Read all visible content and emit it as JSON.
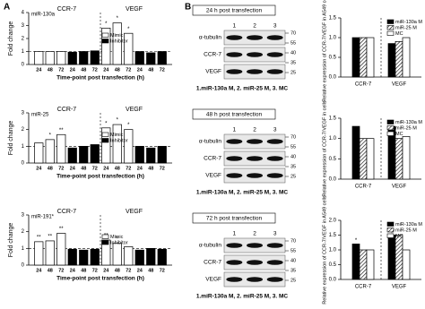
{
  "panel_labels": [
    "A",
    "B"
  ],
  "chart_data": [
    {
      "type": "bar",
      "title": "miR-130a",
      "ylabel": "Fold change",
      "xlabel": "Time-point post transfection (h)",
      "group_labels": [
        "CCR-7",
        "VEGF"
      ],
      "categories": [
        "24",
        "48",
        "72",
        "24",
        "48",
        "72",
        "24",
        "48",
        "72",
        "24",
        "48",
        "72"
      ],
      "series": [
        {
          "name": "Mimic",
          "color": "#ffffff",
          "values": [
            1.0,
            1.0,
            1.0,
            null,
            null,
            null,
            2.8,
            3.2,
            2.4,
            null,
            null,
            null
          ],
          "significance": [
            null,
            null,
            null,
            null,
            null,
            null,
            "*",
            "*",
            "*",
            null,
            null,
            null
          ]
        },
        {
          "name": "Inhibitor",
          "color": "#000000",
          "values": [
            null,
            null,
            null,
            0.95,
            1.0,
            1.05,
            null,
            null,
            null,
            1.0,
            0.9,
            1.0
          ]
        }
      ],
      "ylim": [
        0,
        4
      ],
      "yticks": [
        0,
        1,
        2,
        3,
        4
      ],
      "hline": 1,
      "legend": "center"
    },
    {
      "type": "bar",
      "title": "miR-25",
      "ylabel": "Fold change",
      "xlabel": "Time-point post transfection (h)",
      "group_labels": [
        "CCR-7",
        "VEGF"
      ],
      "categories": [
        "24",
        "48",
        "72",
        "24",
        "48",
        "72",
        "24",
        "48",
        "72",
        "24",
        "48",
        "72"
      ],
      "series": [
        {
          "name": "Mimic",
          "color": "#ffffff",
          "values": [
            1.2,
            1.4,
            1.7,
            null,
            null,
            null,
            2.1,
            2.3,
            2.0,
            null,
            null,
            null
          ],
          "significance": [
            null,
            "*",
            "**",
            null,
            null,
            null,
            "*",
            "*",
            "*",
            null,
            null,
            null
          ]
        },
        {
          "name": "Inhibitor",
          "color": "#000000",
          "values": [
            null,
            null,
            null,
            0.9,
            1.0,
            1.1,
            null,
            null,
            null,
            1.0,
            0.9,
            1.0
          ]
        }
      ],
      "ylim": [
        0,
        3
      ],
      "yticks": [
        0,
        1,
        2,
        3
      ],
      "hline": 1,
      "legend": "center"
    },
    {
      "type": "bar",
      "title": "miR-191*",
      "ylabel": "Fold change",
      "xlabel": "Time-point post transfection (h)",
      "group_labels": [
        "CCR-7",
        "VEGF"
      ],
      "categories": [
        "24",
        "48",
        "72",
        "24",
        "48",
        "72",
        "24",
        "48",
        "72",
        "24",
        "48",
        "72"
      ],
      "series": [
        {
          "name": "Mimic",
          "color": "#ffffff",
          "values": [
            1.4,
            1.45,
            1.9,
            null,
            null,
            null,
            1.5,
            1.3,
            1.1,
            null,
            null,
            null
          ],
          "significance": [
            "**",
            "**",
            "**",
            null,
            null,
            null,
            "**",
            "*",
            null,
            null,
            null,
            null
          ]
        },
        {
          "name": "Inhibitor",
          "color": "#000000",
          "values": [
            null,
            null,
            null,
            0.95,
            0.9,
            0.95,
            null,
            null,
            null,
            0.9,
            1.0,
            0.95
          ]
        }
      ],
      "ylim": [
        0,
        3
      ],
      "yticks": [
        0,
        1,
        2,
        3
      ],
      "hline": 1,
      "legend": "center"
    },
    {
      "type": "bar",
      "ylabel": "Relative expression of CCR-7/VEGF in A549 cells",
      "categories": [
        "CCR-7",
        "VEGF"
      ],
      "series": [
        {
          "name": "miR-130a M",
          "color": "#000000",
          "values": [
            1.0,
            0.85
          ]
        },
        {
          "name": "miR-25 M",
          "color": "#ffffff",
          "hatch": true,
          "values": [
            1.0,
            0.9
          ]
        },
        {
          "name": "MC",
          "color": "#ffffff",
          "values": [
            1.0,
            1.0
          ]
        }
      ],
      "ylim": [
        0,
        1.5
      ],
      "yticks": [
        {
          "value": 0,
          "label": "0.0"
        },
        0.5,
        {
          "value": 1,
          "label": "1.0"
        },
        1.5
      ],
      "legend": "upper right"
    },
    {
      "type": "bar",
      "ylabel": "Relative expression of CCR-7/VEGF in cells",
      "categories": [
        "CCR-7",
        "VEGF"
      ],
      "series": [
        {
          "name": "miR-130a M",
          "color": "#000000",
          "values": [
            1.3,
            1.3
          ],
          "significance": [
            null,
            "*"
          ]
        },
        {
          "name": "miR-25 M",
          "color": "#ffffff",
          "hatch": true,
          "values": [
            1.0,
            1.0
          ]
        },
        {
          "name": "MC",
          "color": "#ffffff",
          "values": [
            1.0,
            1.05
          ]
        }
      ],
      "ylim": [
        0,
        1.5
      ],
      "yticks": [
        {
          "value": 0,
          "label": "0.0"
        },
        0.5,
        {
          "value": 1,
          "label": "1.0"
        },
        1.5
      ],
      "legend": "upper right"
    },
    {
      "type": "bar",
      "ylabel": "Relative expression of CCR-7/VEGF in A549 cells",
      "categories": [
        "CCR-7",
        "VEGF"
      ],
      "series": [
        {
          "name": "miR-130a M",
          "color": "#000000",
          "values": [
            1.2,
            1.5
          ],
          "significance": [
            "*",
            "*,*"
          ]
        },
        {
          "name": "miR-25 M",
          "color": "#ffffff",
          "hatch": true,
          "values": [
            1.0,
            1.5
          ]
        },
        {
          "name": "MC",
          "color": "#ffffff",
          "values": [
            1.0,
            1.0
          ]
        }
      ],
      "ylim": [
        0,
        2
      ],
      "yticks": [
        {
          "value": 0,
          "label": "0.0"
        },
        0.5,
        {
          "value": 1,
          "label": "1.0"
        },
        1.5,
        {
          "value": 2,
          "label": "2.0"
        }
      ],
      "legend": "upper right"
    }
  ],
  "blots": [
    {
      "title": "24 h post transfection",
      "lanes": [
        "1",
        "2",
        "3"
      ],
      "proteins": [
        "α-tubulin",
        "CCR-7",
        "VEGF"
      ],
      "markers": [
        "70",
        "55",
        "40",
        "35",
        "25"
      ],
      "caption": "1.miR-130a M, 2. miR-25 M, 3. MC"
    },
    {
      "title": "48 h post transfection",
      "lanes": [
        "1",
        "2",
        "3"
      ],
      "proteins": [
        "α-tubulin",
        "CCR-7",
        "VEGF"
      ],
      "markers": [
        "70",
        "55",
        "40",
        "35",
        "25"
      ],
      "caption": "1.miR-130a M, 2. miR-25 M, 3. MC"
    },
    {
      "title": "72 h post transfection",
      "lanes": [
        "1",
        "2",
        "3"
      ],
      "proteins": [
        "α-tubulin",
        "CCR-7",
        "VEGF"
      ],
      "markers": [
        "70",
        "55",
        "40",
        "35",
        "25"
      ],
      "caption": "1.miR-130a M, 2. miR-25 M, 3. MC"
    }
  ]
}
